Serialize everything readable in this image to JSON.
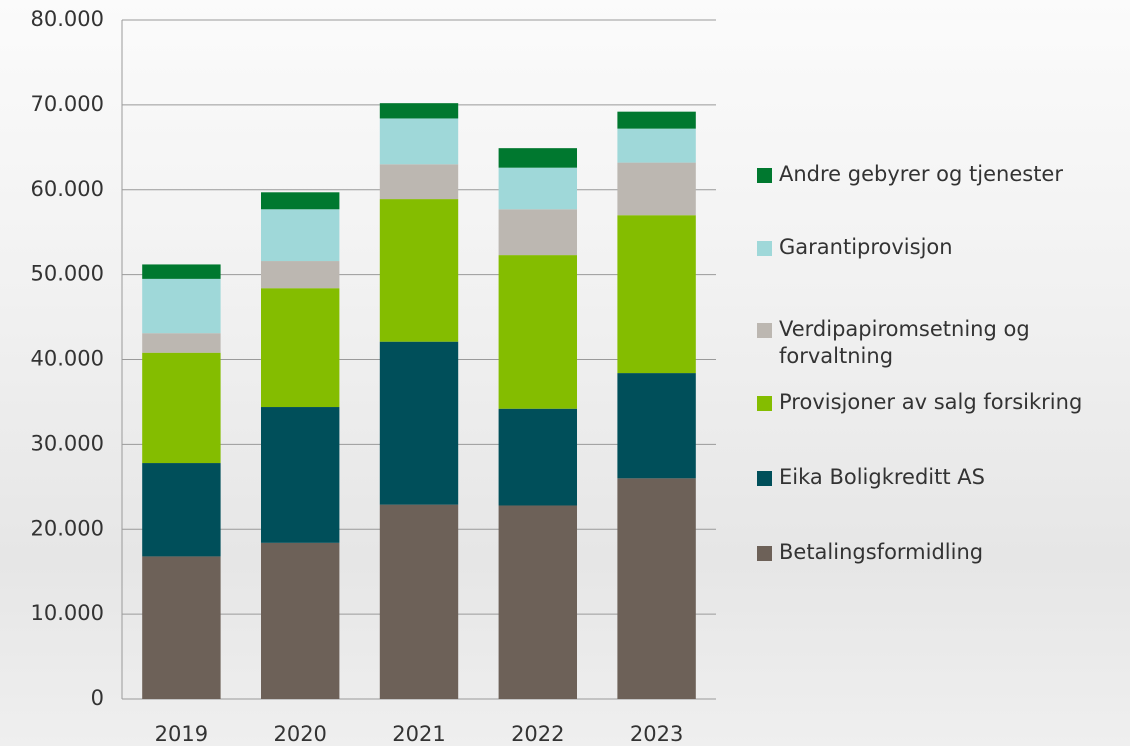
{
  "chart_data": {
    "type": "bar",
    "stacked": true,
    "categories": [
      "2019",
      "2020",
      "2021",
      "2022",
      "2023"
    ],
    "series": [
      {
        "name": "Betalingsformidling",
        "color": "#6d6158",
        "values": [
          16800,
          18400,
          22900,
          22800,
          26000
        ]
      },
      {
        "name": "Eika Boligkreditt AS",
        "color": "#004f5a",
        "values": [
          11000,
          16000,
          19200,
          11400,
          12400
        ]
      },
      {
        "name": "Provisjoner av salg forsikring",
        "color": "#84bd00",
        "values": [
          13000,
          14000,
          16800,
          18100,
          18600
        ]
      },
      {
        "name": "Verdipapiromsetning og forvaltning",
        "color": "#bcb7b1",
        "values": [
          2300,
          3200,
          4100,
          5400,
          6200
        ]
      },
      {
        "name": "Garantiprovisjon",
        "color": "#9fd8d9",
        "values": [
          6400,
          6100,
          5400,
          4900,
          4000
        ]
      },
      {
        "name": "Andre gebyrer og tjenester",
        "color": "#00782f",
        "values": [
          1700,
          2000,
          1800,
          2300,
          2000
        ]
      }
    ],
    "ylim": [
      0,
      80000
    ],
    "yticks": [
      0,
      {
        "value": 10000,
        "label": "10.000"
      },
      {
        "value": 20000,
        "label": "20.000"
      },
      {
        "value": 30000,
        "label": "30.000"
      },
      {
        "value": 40000,
        "label": "40.000"
      },
      {
        "value": 50000,
        "label": "50.000"
      },
      {
        "value": 60000,
        "label": "60.000"
      },
      {
        "value": 70000,
        "label": "70.000"
      },
      {
        "value": 80000,
        "label": "80.000"
      }
    ],
    "grid": true,
    "legend": "right"
  }
}
